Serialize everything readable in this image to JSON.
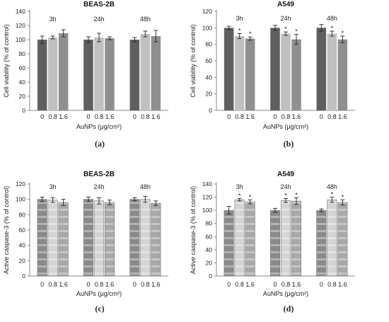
{
  "chart_data": [
    {
      "type": "bar",
      "title": "BEAS-2B",
      "caption": "(a)",
      "ylabel": "Cell viability (% of control)",
      "xlabel": "AuNPs (μg/cm²)",
      "ylim": [
        0,
        140
      ],
      "yticks": [
        0,
        20,
        40,
        60,
        80,
        100,
        120,
        140
      ],
      "groups": [
        "3h",
        "24h",
        "48h"
      ],
      "categories": [
        "0",
        "0.8",
        "1.6"
      ],
      "fill_style": "solid",
      "colors": [
        "#5f5f5f",
        "#c0c0c0",
        "#8f8f8f"
      ],
      "values": [
        [
          100,
          103,
          109
        ],
        [
          100,
          103,
          102
        ],
        [
          100,
          108,
          105
        ]
      ],
      "errors": [
        [
          5,
          2,
          5
        ],
        [
          4,
          6,
          2
        ],
        [
          3,
          4,
          8
        ]
      ],
      "significant": [
        [
          false,
          false,
          false
        ],
        [
          false,
          false,
          false
        ],
        [
          false,
          false,
          false
        ]
      ]
    },
    {
      "type": "bar",
      "title": "A549",
      "caption": "(b)",
      "ylabel": "Cell viability (% of control)",
      "xlabel": "AuNPs (μg/cm²)",
      "ylim": [
        0,
        120
      ],
      "yticks": [
        0,
        20,
        40,
        60,
        80,
        100,
        120
      ],
      "groups": [
        "3h",
        "24h",
        "48h"
      ],
      "categories": [
        "0",
        "0.8",
        "1.6"
      ],
      "fill_style": "solid",
      "colors": [
        "#5f5f5f",
        "#c0c0c0",
        "#8f8f8f"
      ],
      "values": [
        [
          100,
          90,
          87
        ],
        [
          100,
          93,
          86
        ],
        [
          100,
          93,
          86
        ]
      ],
      "errors": [
        [
          2,
          3,
          2
        ],
        [
          3,
          2,
          6
        ],
        [
          4,
          3,
          4
        ]
      ],
      "significant": [
        [
          false,
          true,
          true
        ],
        [
          false,
          true,
          true
        ],
        [
          false,
          true,
          true
        ]
      ],
      "marker": "*"
    },
    {
      "type": "bar",
      "title": "BEAS-2B",
      "caption": "(c)",
      "ylabel": "Active caspase-3 (% of control)",
      "xlabel": "AuNPs (μg/cm²)",
      "ylim": [
        0,
        120
      ],
      "yticks": [
        0,
        20,
        40,
        60,
        80,
        100,
        120
      ],
      "groups": [
        "3h",
        "24h",
        "48h"
      ],
      "categories": [
        "0",
        "0.8",
        "1.6"
      ],
      "fill_style": "banded",
      "colors": [
        "#8a8a8a",
        "#d4d4d4",
        "#a8a8a8"
      ],
      "values": [
        [
          100,
          99,
          96
        ],
        [
          100,
          98,
          96
        ],
        [
          100,
          100,
          95
        ]
      ],
      "errors": [
        [
          3,
          3,
          4
        ],
        [
          3,
          4,
          3
        ],
        [
          2,
          4,
          3
        ]
      ],
      "significant": [
        [
          false,
          false,
          false
        ],
        [
          false,
          false,
          false
        ],
        [
          false,
          false,
          false
        ]
      ]
    },
    {
      "type": "bar",
      "title": "A549",
      "caption": "(d)",
      "ylabel": "Active caspase-3 (% of control)",
      "xlabel": "AuNPs (μg/cm²)",
      "ylim": [
        0,
        140
      ],
      "yticks": [
        0,
        20,
        40,
        60,
        80,
        100,
        120,
        140
      ],
      "groups": [
        "3h",
        "24h",
        "48h"
      ],
      "categories": [
        "0",
        "0.8",
        "1.6"
      ],
      "fill_style": "banded",
      "colors": [
        "#8a8a8a",
        "#d4d4d4",
        "#a8a8a8"
      ],
      "values": [
        [
          100,
          116,
          113
        ],
        [
          100,
          115,
          114
        ],
        [
          100,
          116,
          112
        ]
      ],
      "errors": [
        [
          6,
          2,
          3
        ],
        [
          3,
          3,
          5
        ],
        [
          2,
          4,
          4
        ]
      ],
      "significant": [
        [
          false,
          true,
          true
        ],
        [
          false,
          true,
          true
        ],
        [
          false,
          true,
          true
        ]
      ],
      "marker": "*"
    }
  ]
}
